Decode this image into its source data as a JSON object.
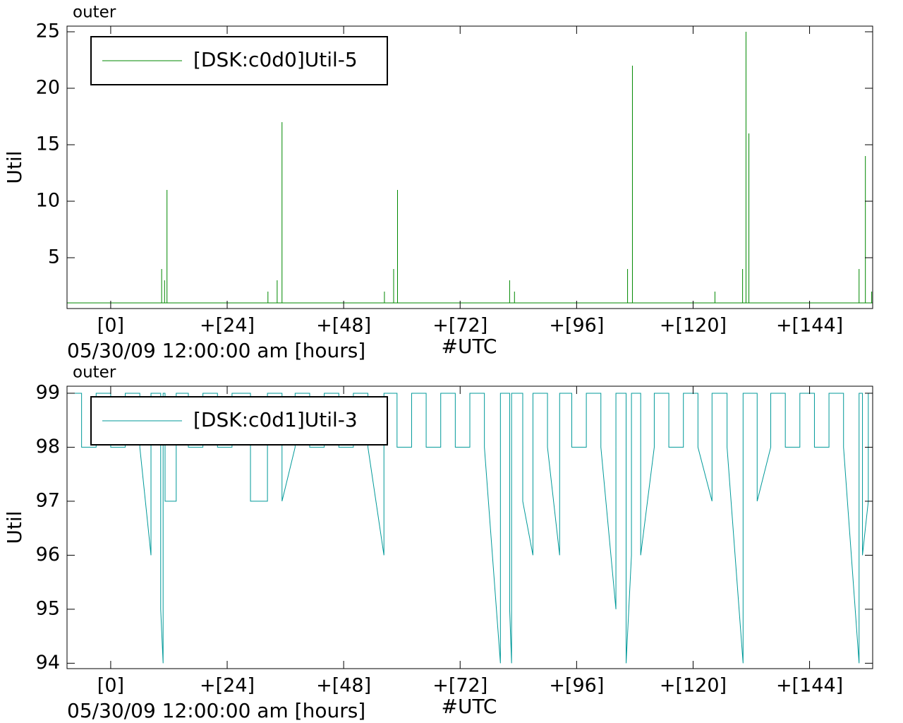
{
  "chart_data": [
    {
      "type": "line",
      "title": "outer",
      "xlabel": "05/30/09 12:00:00 am [hours]",
      "xnote": "#UTC",
      "ylabel": "Util",
      "xlim": [
        -9,
        157
      ],
      "ylim": [
        0.5,
        25.5
      ],
      "xticks": [
        {
          "value": 0,
          "label": "[0]"
        },
        {
          "value": 24,
          "label": "+[24]"
        },
        {
          "value": 48,
          "label": "+[48]"
        },
        {
          "value": 72,
          "label": "+[72]"
        },
        {
          "value": 96,
          "label": "+[96]"
        },
        {
          "value": 120,
          "label": "+[120]"
        },
        {
          "value": 144,
          "label": "+[144]"
        }
      ],
      "yticks": [
        5,
        10,
        15,
        20,
        25
      ],
      "legend": "upper left",
      "x": [
        -9,
        10.5,
        10.5,
        10.5,
        11.1,
        11.1,
        11.1,
        11.6,
        11.6,
        11.6,
        32.4,
        32.4,
        32.4,
        34.3,
        34.3,
        34.3,
        35.3,
        35.3,
        35.3,
        56.4,
        56.4,
        56.4,
        58.3,
        58.3,
        58.3,
        59.1,
        59.1,
        59.1,
        82.2,
        82.2,
        82.2,
        83.2,
        83.2,
        83.2,
        106.5,
        106.5,
        106.5,
        107.5,
        107.5,
        107.5,
        124.5,
        124.5,
        124.5,
        130.2,
        130.2,
        130.2,
        130.9,
        130.9,
        130.9,
        131.5,
        131.5,
        131.5,
        154.2,
        154.2,
        154.2,
        155.5,
        155.5,
        155.5,
        156.8,
        156.8,
        156.8,
        157
      ],
      "series": [
        {
          "name": "[DSK:c0d0]Util-5",
          "color": "#008800",
          "values": [
            1,
            1,
            4,
            1,
            1,
            3,
            1,
            1,
            11,
            1,
            1,
            2,
            1,
            1,
            3,
            1,
            1,
            17,
            1,
            1,
            2,
            1,
            1,
            4,
            1,
            1,
            11,
            1,
            1,
            3,
            1,
            1,
            2,
            1,
            1,
            4,
            1,
            1,
            22,
            1,
            1,
            2,
            1,
            1,
            4,
            1,
            1,
            25,
            1,
            1,
            16,
            1,
            1,
            4,
            1,
            1,
            14,
            1,
            1,
            2,
            1,
            1
          ]
        }
      ]
    },
    {
      "type": "line",
      "title": "outer",
      "xlabel": "05/30/09 12:00:00 am [hours]",
      "xnote": "#UTC",
      "ylabel": "Util",
      "xlim": [
        -9,
        157
      ],
      "ylim": [
        93.9,
        99.13
      ],
      "xticks": [
        {
          "value": 0,
          "label": "[0]"
        },
        {
          "value": 24,
          "label": "+[24]"
        },
        {
          "value": 48,
          "label": "+[48]"
        },
        {
          "value": 72,
          "label": "+[72]"
        },
        {
          "value": 96,
          "label": "+[96]"
        },
        {
          "value": 120,
          "label": "+[120]"
        },
        {
          "value": 144,
          "label": "+[144]"
        }
      ],
      "yticks": [
        94,
        95,
        96,
        97,
        98,
        99
      ],
      "legend": "upper left",
      "x": [
        -9,
        -9,
        -6,
        -6,
        -3,
        -3,
        0,
        0,
        3,
        3,
        6,
        6,
        8.3,
        8.3,
        10.3,
        10.3,
        10.8,
        10.8,
        11.2,
        11.2,
        13.5,
        13.5,
        16,
        16,
        19,
        19,
        22,
        22,
        25,
        25,
        28.8,
        28.8,
        32.3,
        32.3,
        35.3,
        35.3,
        38,
        38,
        41,
        41,
        44,
        44,
        47,
        47,
        50,
        50,
        53,
        53,
        56.3,
        56.3,
        59,
        59,
        62,
        62,
        65,
        65,
        68,
        68,
        71,
        71,
        74,
        74,
        77,
        77,
        80.3,
        80.3,
        82.2,
        82.2,
        82.6,
        82.6,
        84.9,
        84.9,
        87,
        87,
        90,
        90,
        92.5,
        92.5,
        95,
        95,
        98,
        98,
        101,
        101,
        104.1,
        104.1,
        106.2,
        106.2,
        107.3,
        107.3,
        109.2,
        109.2,
        112,
        112,
        115,
        115,
        118,
        118,
        121,
        121,
        123.9,
        123.9,
        127,
        127,
        130.3,
        130.3,
        133.2,
        133.2,
        136,
        136,
        139,
        139,
        142,
        142,
        145,
        145,
        148,
        148,
        151,
        151,
        154.2,
        154.2,
        154.9,
        154.9,
        156.1,
        156.1,
        157,
        157
      ],
      "series": [
        {
          "name": "[DSK:c0d1]Util-3",
          "color": "#009999",
          "values": [
            98,
            99,
            99,
            98,
            98,
            99,
            99,
            98,
            98,
            99,
            99,
            98,
            96,
            99,
            99,
            95,
            94,
            99,
            99,
            97,
            97,
            99,
            99,
            98,
            98,
            99,
            99,
            98,
            98,
            99,
            99,
            97,
            97,
            99,
            99,
            97,
            98,
            99,
            99,
            98,
            98,
            99,
            99,
            98,
            98,
            99,
            99,
            98,
            96,
            99,
            99,
            98,
            98,
            99,
            99,
            98,
            98,
            99,
            99,
            98,
            98,
            99,
            99,
            98,
            94,
            99,
            99,
            95,
            94,
            99,
            99,
            97,
            96,
            99,
            99,
            98,
            96,
            99,
            99,
            98,
            98,
            99,
            99,
            98,
            95,
            99,
            99,
            94,
            96,
            99,
            99,
            96,
            98,
            99,
            99,
            98,
            98,
            99,
            99,
            98,
            97,
            99,
            99,
            98,
            94,
            99,
            99,
            97,
            98,
            99,
            99,
            98,
            98,
            99,
            99,
            98,
            98,
            99,
            99,
            98,
            94,
            99,
            99,
            96,
            97,
            99,
            99,
            98
          ]
        }
      ]
    }
  ]
}
